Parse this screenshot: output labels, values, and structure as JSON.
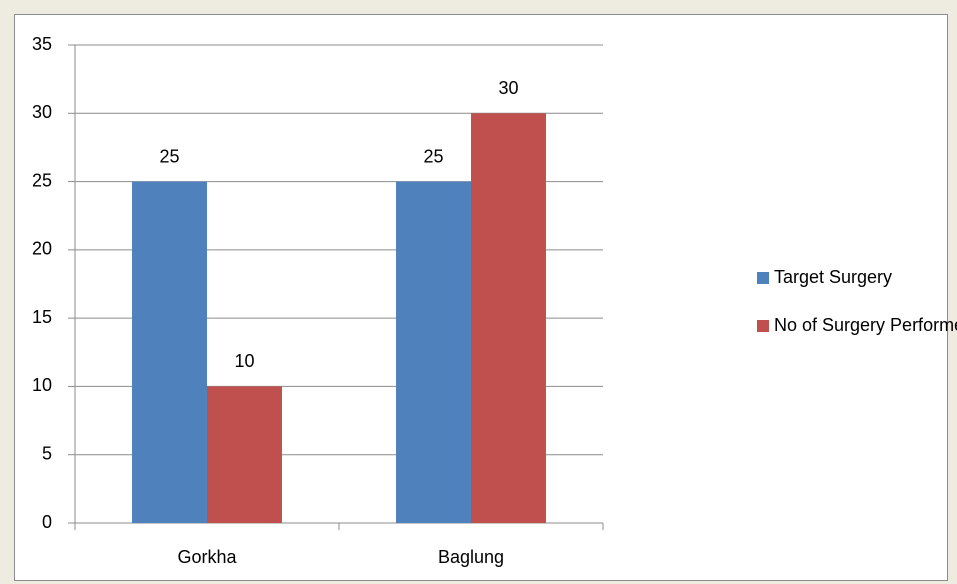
{
  "chart_data": {
    "type": "bar",
    "categories": [
      "Gorkha",
      "Baglung"
    ],
    "series": [
      {
        "name": "Target Surgery",
        "color": "#4f81bd",
        "values": [
          25,
          25
        ]
      },
      {
        "name": "No of Surgery Performed",
        "color": "#c0504d",
        "values": [
          10,
          30
        ]
      }
    ],
    "ylim": [
      0,
      35
    ],
    "yticks": [
      0,
      5,
      10,
      15,
      20,
      25,
      30,
      35
    ],
    "grid": true,
    "legend": "right"
  }
}
